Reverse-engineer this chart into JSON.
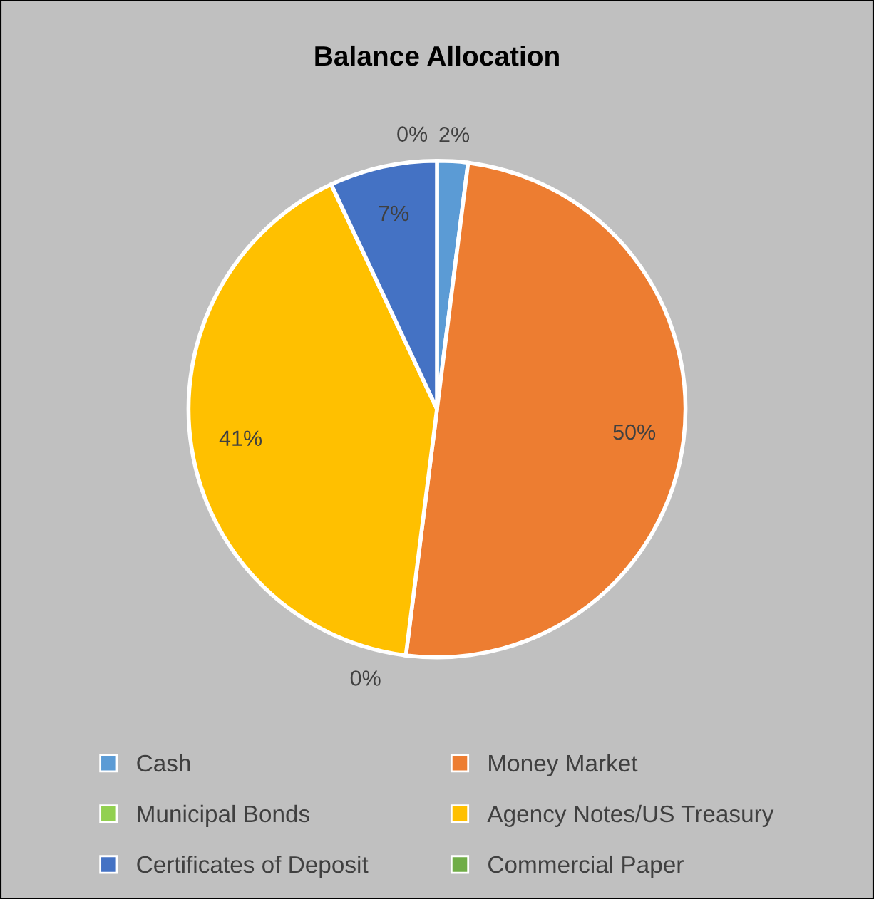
{
  "chart_data": {
    "type": "pie",
    "title": "Balance Allocation",
    "categories": [
      "Cash",
      "Money Market",
      "Municipal Bonds",
      "Agency Notes/US Treasury",
      "Certificates of Deposit",
      "Commercial Paper"
    ],
    "values": [
      2,
      50,
      0,
      41,
      7,
      0
    ],
    "value_labels": [
      "2%",
      "50%",
      "0%",
      "41%",
      "7%",
      "0%"
    ],
    "colors": [
      "#5b9bd5",
      "#ed7d31",
      "#92d050",
      "#ffc000",
      "#4472c4",
      "#70ad47"
    ],
    "legend": "bottom"
  }
}
